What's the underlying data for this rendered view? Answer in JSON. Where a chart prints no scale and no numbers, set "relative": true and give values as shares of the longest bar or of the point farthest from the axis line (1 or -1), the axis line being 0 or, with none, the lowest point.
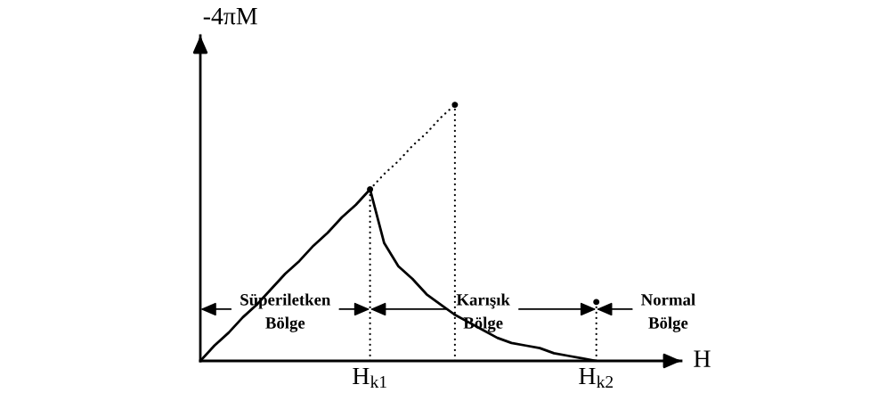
{
  "chart_data": {
    "type": "line",
    "relative": true,
    "xlabel": "H",
    "ylabel": "-4πM",
    "tick_labels": "x",
    "categories": [
      null,
      null,
      null,
      null,
      null,
      null,
      null,
      null,
      null,
      null,
      null,
      null,
      "H$_{k1}$",
      null,
      null,
      null,
      null,
      null,
      null,
      null,
      null,
      null,
      null,
      null,
      null,
      null,
      null,
      null,
      "H$_{k2}$",
      null,
      null,
      null,
      null,
      null,
      null
    ],
    "series": [
      {
        "color": "#000000",
        "line_style": "solid",
        "values": [
          0,
          0.06,
          0.11,
          0.17,
          0.22,
          0.28,
          0.34,
          0.39,
          0.45,
          0.5,
          0.56,
          0.61,
          0.67,
          0.46,
          0.37,
          0.32,
          0.26,
          0.22,
          0.18,
          0.15,
          0.12,
          0.09,
          0.07,
          0.06,
          0.05,
          0.03,
          0.02,
          0.01,
          0,
          null,
          null,
          null,
          null,
          null,
          null
        ]
      },
      {
        "color": "#000000",
        "line_style": "dotted",
        "values": [
          null,
          null,
          null,
          null,
          null,
          null,
          null,
          null,
          null,
          null,
          null,
          null,
          0.67,
          0.73,
          0.78,
          0.84,
          0.89,
          0.95,
          1,
          null,
          null,
          null,
          null,
          null,
          null,
          null,
          null,
          null,
          null,
          null,
          null,
          null,
          null,
          null,
          null
        ]
      },
      {
        "type": "lollipop",
        "color": "#000000",
        "line_style": "dotted",
        "marker": "circle",
        "values": [
          null,
          null,
          null,
          null,
          null,
          null,
          null,
          null,
          null,
          null,
          null,
          null,
          0.67,
          null,
          null,
          null,
          null,
          null,
          1,
          null,
          null,
          null,
          null,
          null,
          null,
          null,
          null,
          null,
          0.23,
          null,
          null,
          null,
          null,
          null,
          null
        ]
      }
    ],
    "annotations": [
      "Süperiletken\nBölge",
      "Karışık\nBölge",
      "Normal\nBölge"
    ]
  }
}
